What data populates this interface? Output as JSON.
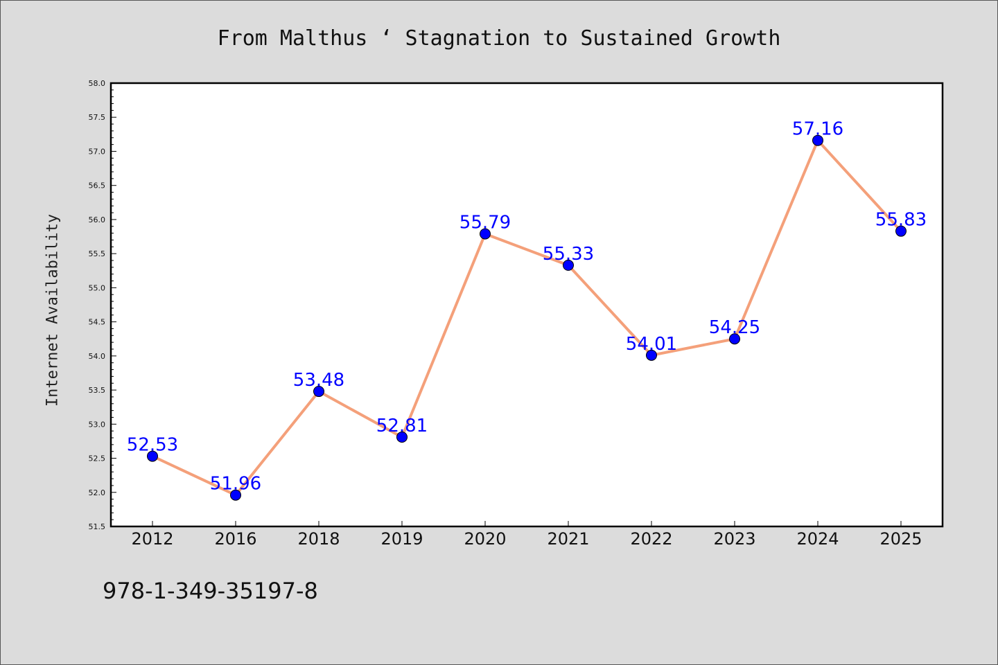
{
  "chart_data": {
    "type": "line",
    "title": "From Malthus ‘ Stagnation to Sustained Growth",
    "xlabel": "",
    "ylabel": "Internet Availability",
    "categories": [
      "2012",
      "2016",
      "2018",
      "2019",
      "2020",
      "2021",
      "2022",
      "2023",
      "2024",
      "2025"
    ],
    "series": [
      {
        "values": [
          52.53,
          51.96,
          53.48,
          52.81,
          55.79,
          55.33,
          54.01,
          54.25,
          57.16,
          55.83
        ],
        "data_labels": [
          "52.53",
          "51.96",
          "53.48",
          "52.81",
          "55.79",
          "55.33",
          "54.01",
          "54.25",
          "57.16",
          "55.83"
        ],
        "line_color": "#f4a07a",
        "marker_color": "#0000ff",
        "label_color": "#0000ff"
      }
    ],
    "ylim": [
      51.5,
      58.0
    ],
    "yticks": [
      "51.5",
      "52.0",
      "52.5",
      "53.0",
      "53.5",
      "54.0",
      "54.5",
      "55.0",
      "55.5",
      "56.0",
      "56.5",
      "57.0",
      "57.5",
      "58.0"
    ],
    "grid": false,
    "legend": "none"
  },
  "footer": {
    "isbn": "978-1-349-35197-8"
  },
  "colors": {
    "background": "#dcdcdc",
    "plot_background": "#ffffff"
  }
}
